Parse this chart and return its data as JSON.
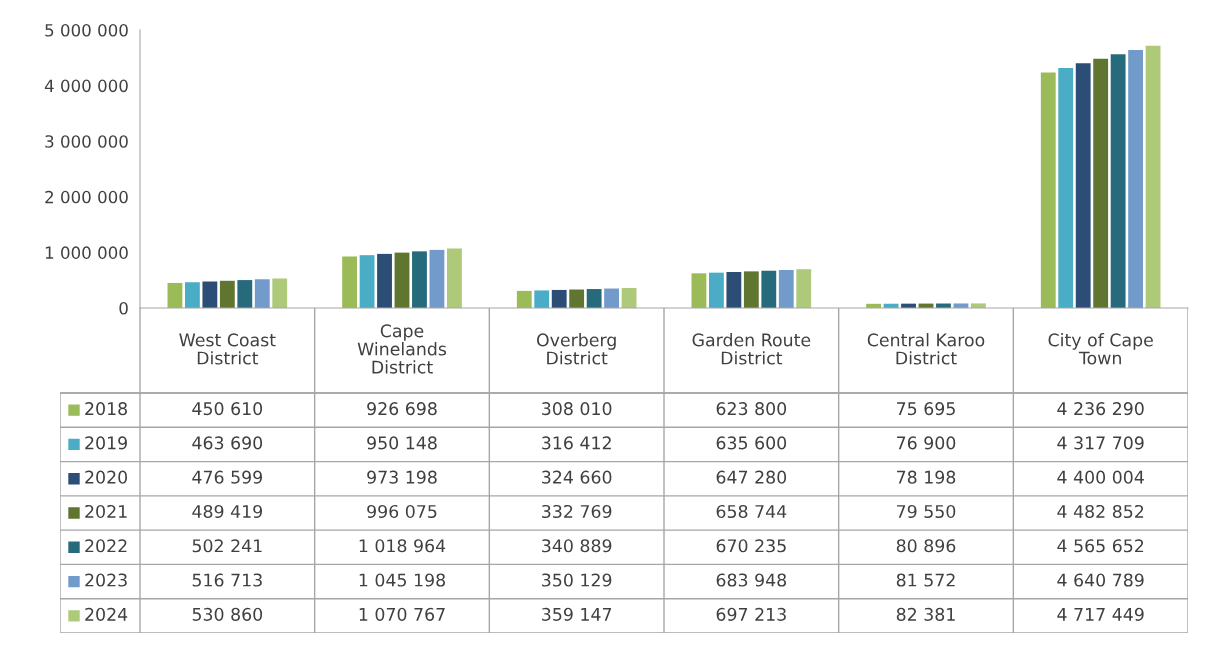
{
  "chart_data": {
    "type": "bar",
    "categories": [
      "West Coast\nDistrict",
      "Cape\nWinelands\nDistrict",
      "Overberg\nDistrict",
      "Garden Route\nDistrict",
      "Central Karoo\nDistrict",
      "City of Cape\nTown"
    ],
    "series": [
      {
        "name": "2018",
        "color": "#9bbb59",
        "values": [
          450610,
          926698,
          308010,
          623800,
          75695,
          4236290
        ]
      },
      {
        "name": "2019",
        "color": "#4bacc6",
        "values": [
          463690,
          950148,
          316412,
          635600,
          76900,
          4317709
        ]
      },
      {
        "name": "2020",
        "color": "#2c4d75",
        "values": [
          476599,
          973198,
          324660,
          647280,
          78198,
          4400004
        ]
      },
      {
        "name": "2021",
        "color": "#5f7530",
        "values": [
          489419,
          996075,
          332769,
          658744,
          79550,
          4482852
        ]
      },
      {
        "name": "2022",
        "color": "#276a7c",
        "values": [
          502241,
          1018964,
          340889,
          670235,
          80896,
          4565652
        ]
      },
      {
        "name": "2023",
        "color": "#729aca",
        "values": [
          516713,
          1045198,
          350129,
          683948,
          81572,
          4640789
        ]
      },
      {
        "name": "2024",
        "color": "#afc97a",
        "values": [
          530860,
          1070767,
          359147,
          697213,
          82381,
          4717449
        ]
      }
    ],
    "ylim": [
      0,
      5000000
    ],
    "yticks": [
      {
        "value": 0,
        "label": "0"
      },
      {
        "value": 1000000,
        "label": "1 000 000"
      },
      {
        "value": 2000000,
        "label": "2 000 000"
      },
      {
        "value": 3000000,
        "label": "3 000 000"
      },
      {
        "value": 4000000,
        "label": "4 000 000"
      },
      {
        "value": 5000000,
        "label": "5 000 000"
      }
    ],
    "data_labels": true,
    "grid": false,
    "legend": "left"
  }
}
